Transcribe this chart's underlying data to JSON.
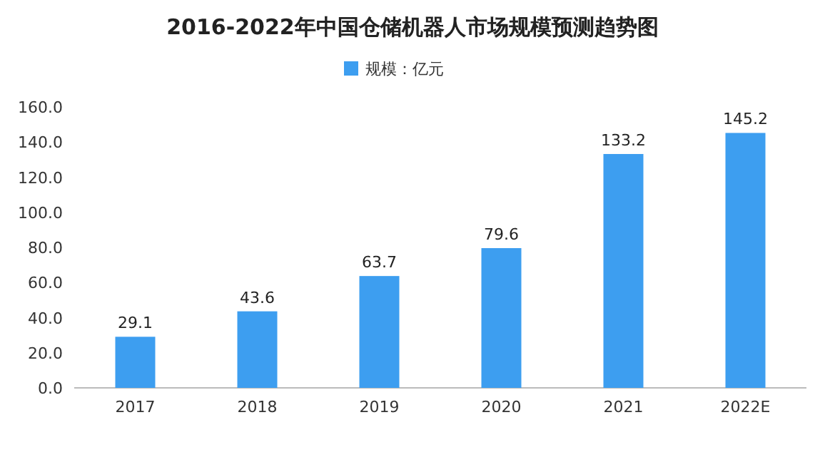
{
  "chart_data": {
    "type": "bar",
    "title": "2016-2022年中国仓储机器人市场规模预测趋势图",
    "categories": [
      "2017",
      "2018",
      "2019",
      "2020",
      "2021",
      "2022E"
    ],
    "series": [
      {
        "name": "规模：亿元",
        "color": "#3d9ef0",
        "values": [
          29.1,
          43.6,
          63.7,
          79.6,
          133.2,
          145.2
        ]
      }
    ],
    "ylim": [
      0,
      160
    ],
    "yticks": [
      {
        "value": 0,
        "label": "0.0"
      },
      {
        "value": 20,
        "label": "20.0"
      },
      {
        "value": 40,
        "label": "40.0"
      },
      {
        "value": 60,
        "label": "60.0"
      },
      {
        "value": 80,
        "label": "80.0"
      },
      {
        "value": 100,
        "label": "100.0"
      },
      {
        "value": 120,
        "label": "120.0"
      },
      {
        "value": 140,
        "label": "140.0"
      },
      {
        "value": 160,
        "label": "160.0"
      }
    ],
    "data_labels": true,
    "legend": "top",
    "grid": false
  }
}
